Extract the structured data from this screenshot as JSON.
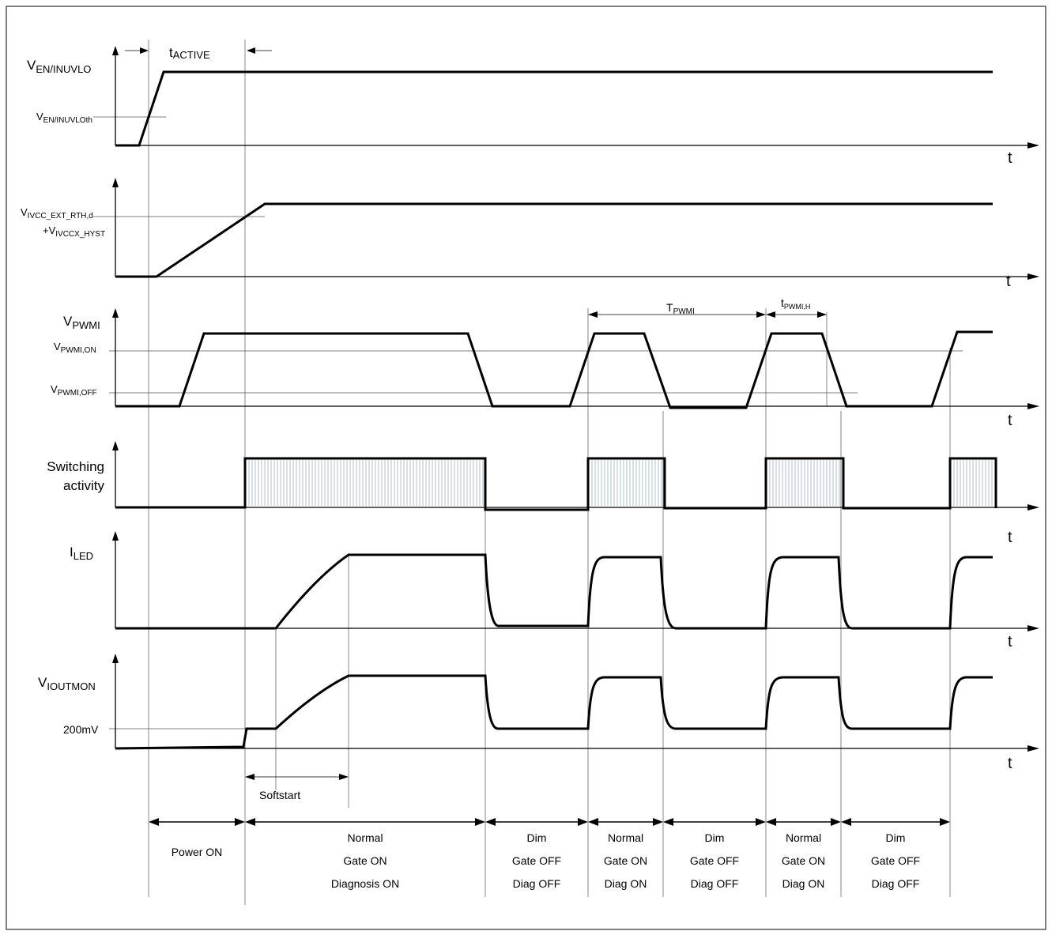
{
  "signals": {
    "en": {
      "label": "V",
      "sub": "EN/INUVLO",
      "threshold_label": "V",
      "threshold_sub": "EN/INUVLOth"
    },
    "ivcc": {
      "label1": "V",
      "sub1": "IVCC_EXT_RTH,d",
      "label2": "+V",
      "sub2": "IVCCX_HYST"
    },
    "pwmi": {
      "label": "V",
      "sub": "PWMI",
      "on_label": "V",
      "on_sub": "PWMI,ON",
      "off_label": "V",
      "off_sub": "PWMI,OFF"
    },
    "switching": {
      "label1": "Switching",
      "label2": "activity"
    },
    "iled": {
      "label": "I",
      "sub": "LED"
    },
    "ioutmon": {
      "label": "V",
      "sub": "IOUTMON",
      "level_label": "200mV"
    }
  },
  "time_label": "t",
  "timing": {
    "t_active": {
      "label": "t",
      "sub": "ACTIVE"
    },
    "t_pwmi": {
      "label": "T",
      "sub": "PWMI"
    },
    "t_pwmi_h": {
      "label": "t",
      "sub": "PWMI,H"
    },
    "softstart": "Softstart"
  },
  "phases": [
    {
      "lines": [
        "Power ON"
      ]
    },
    {
      "lines": [
        "Normal",
        "Gate ON",
        "Diagnosis ON"
      ]
    },
    {
      "lines": [
        "Dim",
        "Gate OFF",
        "Diag OFF"
      ]
    },
    {
      "lines": [
        "Normal",
        "Gate ON",
        "Diag ON"
      ]
    },
    {
      "lines": [
        "Dim",
        "Gate OFF",
        "Diag OFF"
      ]
    },
    {
      "lines": [
        "Normal",
        "Gate ON",
        "Diag ON"
      ]
    },
    {
      "lines": [
        "Dim",
        "Gate OFF",
        "Diag OFF"
      ]
    }
  ]
}
